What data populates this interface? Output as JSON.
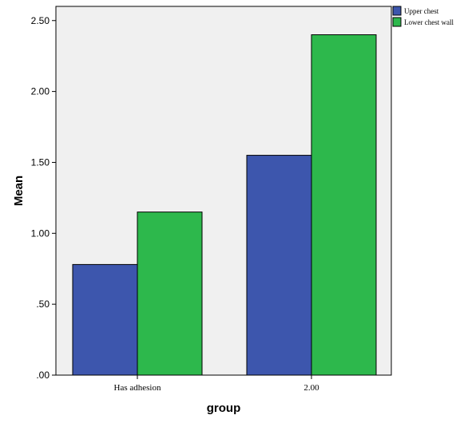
{
  "chart_data": {
    "type": "bar",
    "categories": [
      "Has adhesion",
      "2.00"
    ],
    "series": [
      {
        "name": "Upper chest",
        "values": [
          0.78,
          1.55
        ],
        "color": "#3d56ad"
      },
      {
        "name": "Lower chest wall",
        "values": [
          1.15,
          2.4
        ],
        "color": "#2db84c"
      }
    ],
    "xlabel": "group",
    "ylabel": "Mean",
    "ylim": [
      0,
      2.6
    ],
    "yticks": [
      0,
      0.5,
      1.0,
      1.5,
      2.0,
      2.5
    ],
    "ytick_labels": [
      ".00",
      ".50",
      "1.00",
      "1.50",
      "2.00",
      "2.50"
    ],
    "grid": false,
    "legend_position": "top-right",
    "plot_background": "#f0f0f0"
  }
}
